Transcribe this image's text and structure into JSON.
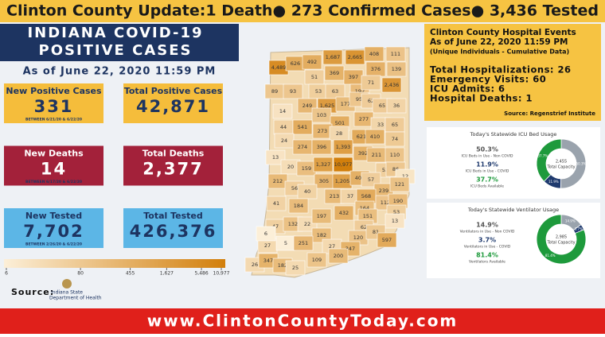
{
  "banner": {
    "text": "Clinton County Update:1 Death● 273 Confirmed Cases● 3,436 Tested"
  },
  "header": {
    "title_line1": "INDIANA COVID-19",
    "title_line2": "POSITIVE CASES",
    "as_of": "As of June 22, 2020 11:59 PM"
  },
  "stats": [
    {
      "label": "New Positive Cases",
      "value": "331",
      "note": "BETWEEN 6/21/20 & 6/22/20",
      "color": "#f5bd3b",
      "text_color": "#1d3461"
    },
    {
      "label": "Total Positive Cases",
      "value": "42,871",
      "color": "#f5bd3b",
      "text_color": "#1d3461"
    },
    {
      "label": "New Deaths",
      "value": "14",
      "note": "BETWEEN 6/17/20 & 6/22/20",
      "color": "#a3213a",
      "text_color": "#ffffff"
    },
    {
      "label": "Total Deaths",
      "value": "2,377",
      "color": "#a3213a",
      "text_color": "#ffffff"
    },
    {
      "label": "New Tested",
      "value": "7,702",
      "note": "BETWEEN 2/26/20 & 6/22/20",
      "color": "#5cb6e6",
      "text_color": "#1d3461"
    },
    {
      "label": "Total Tested",
      "value": "426,376",
      "color": "#5cb6e6",
      "text_color": "#1d3461"
    }
  ],
  "map": {
    "low_color": "#fcefd8",
    "high_color": "#d27f0c",
    "log": true,
    "scale_ticks": [
      6,
      80,
      455,
      {
        "value": 1627,
        "label": "1,627"
      },
      {
        "value": 5486,
        "label": "5,486"
      },
      {
        "value": 10977,
        "label": "10,977"
      }
    ],
    "counties": [
      {
        "value": 4489,
        "label": "4,489"
      },
      {
        "value": 626,
        "label": "626"
      },
      {
        "value": 492,
        "label": "492"
      },
      {
        "value": 1687,
        "label": "1,687"
      },
      {
        "value": 2665,
        "label": "2,665"
      },
      {
        "value": 408,
        "label": "408"
      },
      {
        "value": 111,
        "label": "111"
      },
      {
        "value": 51,
        "label": "51"
      },
      {
        "value": 369,
        "label": "369"
      },
      {
        "value": 397,
        "label": "397"
      },
      {
        "value": 376,
        "label": "376"
      },
      {
        "value": 139,
        "label": "139"
      },
      {
        "value": 89,
        "label": "89"
      },
      {
        "value": 93,
        "label": "93"
      },
      {
        "value": 53,
        "label": "53"
      },
      {
        "value": 63,
        "label": "63"
      },
      {
        "value": 192,
        "label": "192"
      },
      {
        "value": 71,
        "label": "71"
      },
      {
        "value": 2436,
        "label": "2,436"
      },
      {
        "value": 249,
        "label": "249"
      },
      {
        "value": 1625,
        "label": "1,625"
      },
      {
        "value": 177,
        "label": "177"
      },
      {
        "value": 95,
        "label": "95"
      },
      {
        "value": 62,
        "label": "62"
      },
      {
        "value": 65,
        "label": "65"
      },
      {
        "value": 36,
        "label": "36"
      },
      {
        "value": 14,
        "label": "14"
      },
      {
        "value": 103,
        "label": "103"
      },
      {
        "value": 44,
        "label": "44"
      },
      {
        "value": 501,
        "label": "501"
      },
      {
        "value": 277,
        "label": "277"
      },
      {
        "value": 33,
        "label": "33"
      },
      {
        "value": 65,
        "label": "65"
      },
      {
        "value": 541,
        "label": "541"
      },
      {
        "value": 273,
        "label": "273"
      },
      {
        "value": 28,
        "label": "28"
      },
      {
        "value": 24,
        "label": "24"
      },
      {
        "value": 621,
        "label": "621"
      },
      {
        "value": 410,
        "label": "410"
      },
      {
        "value": 74,
        "label": "74"
      },
      {
        "value": 274,
        "label": "274"
      },
      {
        "value": 396,
        "label": "396"
      },
      {
        "value": 1393,
        "label": "1,393"
      },
      {
        "value": 13,
        "label": "13"
      },
      {
        "value": 392,
        "label": "392"
      },
      {
        "value": 211,
        "label": "211"
      },
      {
        "value": 110,
        "label": "110"
      },
      {
        "value": 20,
        "label": "20"
      },
      {
        "value": 159,
        "label": "159"
      },
      {
        "value": 1327,
        "label": "1,327"
      },
      {
        "value": 10977,
        "label": "10,977"
      },
      {
        "value": 52,
        "label": "52"
      },
      {
        "value": 86,
        "label": "86"
      },
      {
        "value": 12,
        "label": "12"
      },
      {
        "value": 212,
        "label": "212"
      },
      {
        "value": 305,
        "label": "305"
      },
      {
        "value": 1205,
        "label": "1,205"
      },
      {
        "value": 407,
        "label": "407"
      },
      {
        "value": 57,
        "label": "57"
      },
      {
        "value": 56,
        "label": "56"
      },
      {
        "value": 40,
        "label": "40"
      },
      {
        "value": 239,
        "label": "239"
      },
      {
        "value": 121,
        "label": "121"
      },
      {
        "value": 213,
        "label": "213"
      },
      {
        "value": 37,
        "label": "37"
      },
      {
        "value": 568,
        "label": "568"
      },
      {
        "value": 41,
        "label": "41"
      },
      {
        "value": 184,
        "label": "184"
      },
      {
        "value": 432,
        "label": "432"
      },
      {
        "value": 164,
        "label": "164"
      },
      {
        "value": 112,
        "label": "112"
      },
      {
        "value": 190,
        "label": "190"
      },
      {
        "value": 47,
        "label": "47"
      },
      {
        "value": 132,
        "label": "132"
      },
      {
        "value": 22,
        "label": "22"
      },
      {
        "value": 197,
        "label": "197"
      },
      {
        "value": 151,
        "label": "151"
      },
      {
        "value": 53,
        "label": "53"
      },
      {
        "value": 62,
        "label": "62"
      },
      {
        "value": 13,
        "label": "13"
      },
      {
        "value": 27,
        "label": "27"
      },
      {
        "value": 182,
        "label": "182"
      },
      {
        "value": 120,
        "label": "120"
      },
      {
        "value": 81,
        "label": "81"
      },
      {
        "value": 597,
        "label": "597"
      },
      {
        "value": 5,
        "label": "5"
      },
      {
        "value": 251,
        "label": "251"
      },
      {
        "value": 27,
        "label": "27"
      },
      {
        "value": 347,
        "label": "347"
      },
      {
        "value": 200,
        "label": "200"
      },
      {
        "value": 26,
        "label": "26"
      },
      {
        "value": 347,
        "label": "347"
      },
      {
        "value": 182,
        "label": "182"
      },
      {
        "value": 25,
        "label": "25"
      },
      {
        "value": 109,
        "label": "109"
      },
      {
        "value": 6,
        "label": "6"
      }
    ]
  },
  "source": {
    "label": "Source:",
    "org_line1": "Indiana State",
    "org_line2": "Department of Health"
  },
  "hospital": {
    "title_lines": [
      "Clinton County Hospital Events",
      "As of June 22, 2020 11:59 PM",
      "(Unique Individuals - Cumulative Data)"
    ],
    "lines": [
      "Total Hospitalizations: 26",
      "Emergency Visits: 60",
      "ICU Admits: 6",
      "Hospital Deaths: 1"
    ],
    "source": "Source: Regenstrief Institute"
  },
  "donuts": [
    {
      "title": "Today's Statewide ICU Bed Usage",
      "total": "2,455",
      "total_label": "Total Capacity",
      "slices": [
        {
          "name": "ICU Beds in Use - Non COVID",
          "value": 50.3,
          "value_label": "50.3%",
          "color": "#9aa3ad"
        },
        {
          "name": "ICU Beds in Use - COVID",
          "value": 11.9,
          "value_label": "11.9%",
          "color": "#1f3a6e"
        },
        {
          "name": "ICU Beds Available",
          "value": 37.7,
          "value_label": "37.7%",
          "color": "#1e9a3c"
        }
      ]
    },
    {
      "title": "Today's Statewide Ventilator Usage",
      "total": "2,985",
      "total_label": "Total Capacity",
      "slices": [
        {
          "name": "Ventilators in Use - Non COVID",
          "value": 14.9,
          "value_label": "14.9%",
          "color": "#9aa3ad"
        },
        {
          "name": "Ventilators in Use - COVID",
          "value": 3.7,
          "value_label": "3.7%",
          "color": "#1f3a6e"
        },
        {
          "name": "Ventilators Available",
          "value": 81.4,
          "value_label": "81.4%",
          "color": "#1e9a3c"
        }
      ]
    }
  ],
  "footer": {
    "url": "www.ClintonCountyToday.com"
  }
}
